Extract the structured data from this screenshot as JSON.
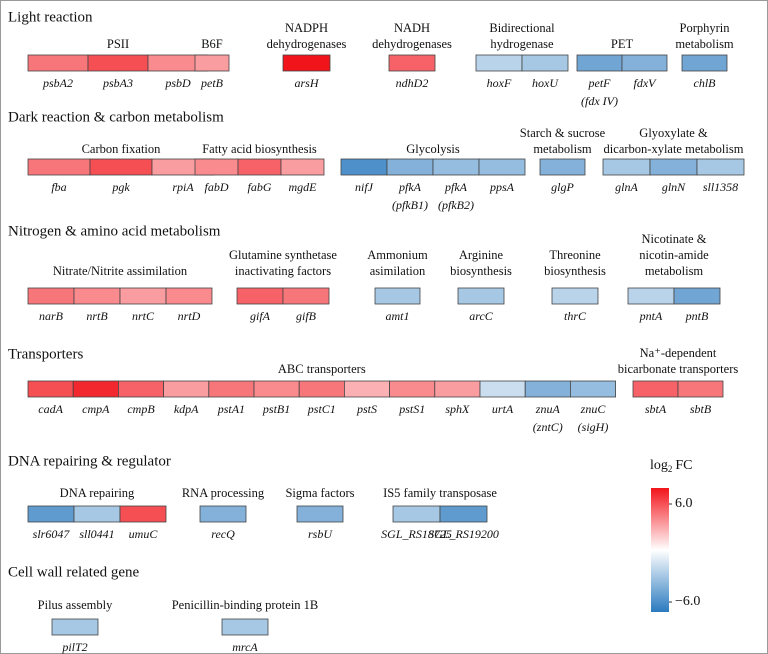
{
  "sections": [
    {
      "title": "Light reaction",
      "groups": [
        {
          "label": [
            "PSII"
          ],
          "genes": [
            {
              "name": "psbA2",
              "value": 3.5
            },
            {
              "name": "psbA3",
              "value": 4.5
            },
            {
              "name": "psbD",
              "value": 3.0
            }
          ]
        },
        {
          "label": [
            "B6F"
          ],
          "genes": [
            {
              "name": "petB",
              "value": 2.5
            }
          ]
        },
        {
          "label": [
            "NADPH",
            "dehydrogenases"
          ],
          "genes": [
            {
              "name": "arsH",
              "value": 6.0
            }
          ]
        },
        {
          "label": [
            "NADH",
            "dehydrogenases"
          ],
          "genes": [
            {
              "name": "ndhD2",
              "value": 4.0
            }
          ]
        },
        {
          "label": [
            "Bidirectional",
            "hydrogenase"
          ],
          "genes": [
            {
              "name": "hoxF",
              "value": -2.0
            },
            {
              "name": "hoxU",
              "value": -2.5
            }
          ]
        },
        {
          "label": [
            "PET"
          ],
          "genes": [
            {
              "name": "petF",
              "alias": "(fdx IV)",
              "value": -4.0
            },
            {
              "name": "fdxV",
              "value": -3.5
            }
          ]
        },
        {
          "label": [
            "Porphyrin",
            "metabolism"
          ],
          "genes": [
            {
              "name": "chlB",
              "value": -4.0
            }
          ]
        }
      ]
    },
    {
      "title": "Dark reaction & carbon metabolism",
      "groups": [
        {
          "label": [
            "Carbon fixation"
          ],
          "genes": [
            {
              "name": "fba",
              "value": 3.5
            },
            {
              "name": "pgk",
              "value": 4.5
            },
            {
              "name": "rpiA",
              "value": 2.5
            }
          ]
        },
        {
          "label": [
            "Fatty acid biosynthesis"
          ],
          "genes": [
            {
              "name": "fabD",
              "value": 3.0
            },
            {
              "name": "fabG",
              "value": 4.0
            },
            {
              "name": "mgdE",
              "value": 2.5
            }
          ]
        },
        {
          "label": [
            "Glycolysis"
          ],
          "genes": [
            {
              "name": "nifJ",
              "value": -5.0
            },
            {
              "name": "pfkA",
              "alias": "(pfkB1)",
              "value": -3.5
            },
            {
              "name": "pfkA",
              "alias": "(pfkB2)",
              "value": -3.0
            },
            {
              "name": "ppsA",
              "value": -3.0
            }
          ]
        },
        {
          "label": [
            "Starch & sucrose",
            "metabolism"
          ],
          "genes": [
            {
              "name": "glgP",
              "value": -3.5
            }
          ]
        },
        {
          "label": [
            "Glyoxylate &",
            "dicarbon-xylate metabolism"
          ],
          "genes": [
            {
              "name": "glnA",
              "value": -2.5
            },
            {
              "name": "glnN",
              "value": -3.5
            },
            {
              "name": "sll1358",
              "value": -2.5
            }
          ]
        }
      ]
    },
    {
      "title": "Nitrogen & amino acid metabolism",
      "groups": [
        {
          "label": [
            "Nitrate/Nitrite assimilation"
          ],
          "genes": [
            {
              "name": "narB",
              "value": 3.5
            },
            {
              "name": "nrtB",
              "value": 3.0
            },
            {
              "name": "nrtC",
              "value": 2.5
            },
            {
              "name": "nrtD",
              "value": 3.0
            }
          ]
        },
        {
          "label": [
            "Glutamine synthetase",
            "inactivating factors"
          ],
          "genes": [
            {
              "name": "gifA",
              "value": 4.0
            },
            {
              "name": "gifB",
              "value": 3.5
            }
          ]
        },
        {
          "label": [
            "Ammonium",
            "asimilation"
          ],
          "genes": [
            {
              "name": "amt1",
              "value": -2.5
            }
          ]
        },
        {
          "label": [
            "Arginine",
            "biosynthesis"
          ],
          "genes": [
            {
              "name": "arcC",
              "value": -2.5
            }
          ]
        },
        {
          "label": [
            "Threonine",
            "biosynthesis"
          ],
          "genes": [
            {
              "name": "thrC",
              "value": -2.0
            }
          ]
        },
        {
          "label": [
            "Nicotinate &",
            "nicotin-amide",
            "metabolism"
          ],
          "genes": [
            {
              "name": "pntA",
              "value": -2.0
            },
            {
              "name": "pntB",
              "value": -4.0
            }
          ]
        }
      ]
    },
    {
      "title": "Transporters",
      "groups": [
        {
          "label": [
            "ABC transporters"
          ],
          "genes": [
            {
              "name": "cadA",
              "value": 4.5
            },
            {
              "name": "cmpA",
              "value": 5.5
            },
            {
              "name": "cmpB",
              "value": 4.0
            },
            {
              "name": "kdpA",
              "value": 2.5
            },
            {
              "name": "pstA1",
              "value": 3.5
            },
            {
              "name": "pstB1",
              "value": 3.0
            },
            {
              "name": "pstC1",
              "value": 3.5
            },
            {
              "name": "pstS",
              "value": 2.0
            },
            {
              "name": "pstS1",
              "value": 3.0
            },
            {
              "name": "sphX",
              "value": 2.5
            },
            {
              "name": "urtA",
              "value": -1.5
            },
            {
              "name": "znuA",
              "alias": "(zntC)",
              "value": -3.5
            },
            {
              "name": "znuC",
              "alias": "(sigH)",
              "value": -3.0
            }
          ]
        },
        {
          "label": [
            "Na⁺-dependent",
            "bicarbonate transporters"
          ],
          "genes": [
            {
              "name": "sbtA",
              "value": 4.0
            },
            {
              "name": "sbtB",
              "value": 3.5
            }
          ]
        }
      ]
    },
    {
      "title": "DNA repairing & regulator",
      "groups": [
        {
          "label": [
            "DNA repairing"
          ],
          "genes": [
            {
              "name": "slr6047",
              "value": -4.5
            },
            {
              "name": "sll0441",
              "value": -2.5
            },
            {
              "name": "umuC",
              "value": 4.5
            }
          ]
        },
        {
          "label": [
            "RNA processing"
          ],
          "genes": [
            {
              "name": "recQ",
              "value": -3.5
            }
          ]
        },
        {
          "label": [
            "Sigma factors"
          ],
          "genes": [
            {
              "name": "rsbU",
              "value": -3.5
            }
          ]
        },
        {
          "label": [
            "IS5 family transposase"
          ],
          "genes": [
            {
              "name": "SGL_RS18725",
              "value": -2.5
            },
            {
              "name": "SGL_RS19200",
              "value": -4.5
            }
          ]
        }
      ]
    },
    {
      "title": "Cell wall related gene",
      "groups": [
        {
          "label": [
            "Pilus assembly"
          ],
          "genes": [
            {
              "name": "pilT2",
              "value": -2.5
            }
          ]
        },
        {
          "label": [
            "Penicillin-binding protein 1B"
          ],
          "genes": [
            {
              "name": "mrcA",
              "value": -2.5
            }
          ]
        }
      ]
    }
  ],
  "legend": {
    "title": "log",
    "title_sub": "2",
    "title_rest": "FC",
    "lim": [
      -6,
      6
    ],
    "ticks": [
      {
        "value": 6,
        "label": "6.0"
      },
      {
        "value": -6,
        "label": "−6.0"
      }
    ],
    "colors": {
      "negative": "#2a7abf",
      "zero": "#ffffff",
      "positive": "#f2141b"
    }
  }
}
